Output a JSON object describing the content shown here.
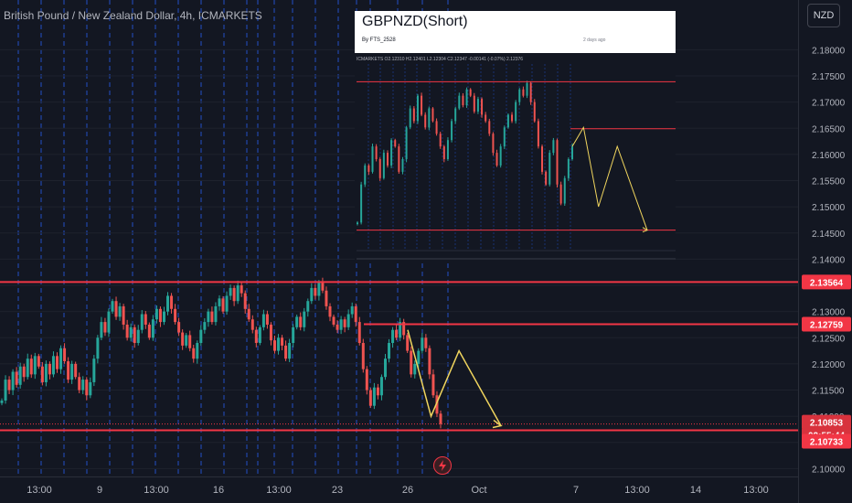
{
  "header": {
    "symbol_title": "British Pound / New Zealand Dollar, 4h, ICMARKETS",
    "currency_button": "NZD"
  },
  "inset": {
    "title": "GBPNZD(Short)",
    "author": "By FTS_2528",
    "posted": "2 days ago",
    "legend": "ICMARKETS  O2.12310  H2.12401  L2.12304  C2.12347  -0.00141 (-0.07%)  2.12376"
  },
  "colors": {
    "background": "#131722",
    "up_candle": "#26a69a",
    "down_candle": "#ef5350",
    "level_line": "#f23645",
    "projection": "#f0d55e",
    "session_line": "#2962ff"
  },
  "chart_data": [
    {
      "type": "candlestick",
      "title": "British Pound / New Zealand Dollar, 4h, ICMARKETS",
      "y_axis": {
        "range": [
          2.0985,
          2.1895
        ],
        "ticks": [
          "2.10000",
          "2.10500",
          "2.11000",
          "2.11500",
          "2.12000",
          "2.12500",
          "2.13000",
          "2.13500",
          "2.14000",
          "2.14500",
          "2.15000",
          "2.15500",
          "2.16000",
          "2.16500",
          "2.17000",
          "2.17500",
          "2.18000"
        ]
      },
      "x_axis": {
        "ticks": [
          "13:00",
          "9",
          "13:00",
          "16",
          "13:00",
          "23",
          "26",
          "Oct",
          "7",
          "13:00",
          "14",
          "13:00"
        ]
      },
      "price_labels": [
        {
          "value": "2.13564",
          "kind": "level"
        },
        {
          "value": "2.12759",
          "kind": "level"
        },
        {
          "value": "2.10853",
          "kind": "last"
        },
        {
          "value": "02:55:44",
          "kind": "countdown"
        },
        {
          "value": "2.10733",
          "kind": "level"
        }
      ],
      "levels": [
        2.13564,
        2.12759,
        2.10733
      ],
      "last_price": 2.10853,
      "closes": [
        2.113,
        2.117,
        2.115,
        2.1185,
        2.116,
        2.1195,
        2.1175,
        2.121,
        2.118,
        2.1215,
        2.1195,
        2.1165,
        2.12,
        2.118,
        2.1215,
        2.119,
        2.123,
        2.1205,
        2.117,
        2.12,
        2.1175,
        2.115,
        2.117,
        2.114,
        2.1165,
        2.121,
        2.125,
        2.128,
        2.126,
        2.13,
        2.132,
        2.129,
        2.131,
        2.1275,
        2.125,
        2.127,
        2.124,
        2.1265,
        2.1295,
        2.1275,
        2.125,
        2.1285,
        2.1305,
        2.128,
        2.13,
        2.133,
        2.1305,
        2.128,
        2.126,
        2.1235,
        2.1255,
        2.123,
        2.121,
        2.124,
        2.1265,
        2.128,
        2.13,
        2.128,
        2.131,
        2.1325,
        2.13,
        2.133,
        2.1345,
        2.132,
        2.135,
        2.1335,
        2.1305,
        2.1285,
        2.1265,
        2.124,
        2.127,
        2.1295,
        2.1275,
        2.1245,
        2.1225,
        2.125,
        2.1235,
        2.121,
        2.124,
        2.127,
        2.129,
        2.127,
        2.13,
        2.132,
        2.1345,
        2.133,
        2.1355,
        2.134,
        2.131,
        2.129,
        2.1275,
        2.1265,
        2.1285,
        2.127,
        2.1295,
        2.131,
        2.128,
        2.124,
        2.119,
        2.115,
        2.112,
        2.1155,
        2.114,
        2.1175,
        2.121,
        2.124,
        2.1265,
        2.125,
        2.128,
        2.1255,
        2.1225,
        2.118,
        2.12,
        2.1225,
        2.125,
        2.123,
        2.118,
        2.114,
        2.1105,
        2.10853
      ],
      "projection": [
        [
          2.1265,
          0
        ],
        [
          2.11,
          0.25
        ],
        [
          2.1225,
          0.55
        ],
        [
          2.1082,
          1.0
        ]
      ]
    },
    {
      "type": "candlestick",
      "title": "GBPNZD(Short)",
      "levels": [
        2.1762,
        2.1688,
        2.1528
      ],
      "closes": [
        2.154,
        2.16,
        2.163,
        2.162,
        2.166,
        2.164,
        2.161,
        2.165,
        2.163,
        2.167,
        2.166,
        2.162,
        2.164,
        2.169,
        2.172,
        2.17,
        2.174,
        2.171,
        2.169,
        2.172,
        2.17,
        2.168,
        2.166,
        2.164,
        2.167,
        2.17,
        2.172,
        2.174,
        2.1725,
        2.175,
        2.174,
        2.1715,
        2.1735,
        2.171,
        2.17,
        2.168,
        2.165,
        2.163,
        2.166,
        2.169,
        2.171,
        2.17,
        2.173,
        2.175,
        2.174,
        2.176,
        2.173,
        2.17,
        2.166,
        2.162,
        2.16,
        2.165,
        2.167,
        2.16,
        2.157,
        2.161,
        2.164,
        2.166
      ],
      "projection": [
        [
          2.166,
          0
        ],
        [
          2.169,
          0.15
        ],
        [
          2.1565,
          0.35
        ],
        [
          2.166,
          0.6
        ],
        [
          2.1528,
          1.0
        ]
      ]
    }
  ]
}
